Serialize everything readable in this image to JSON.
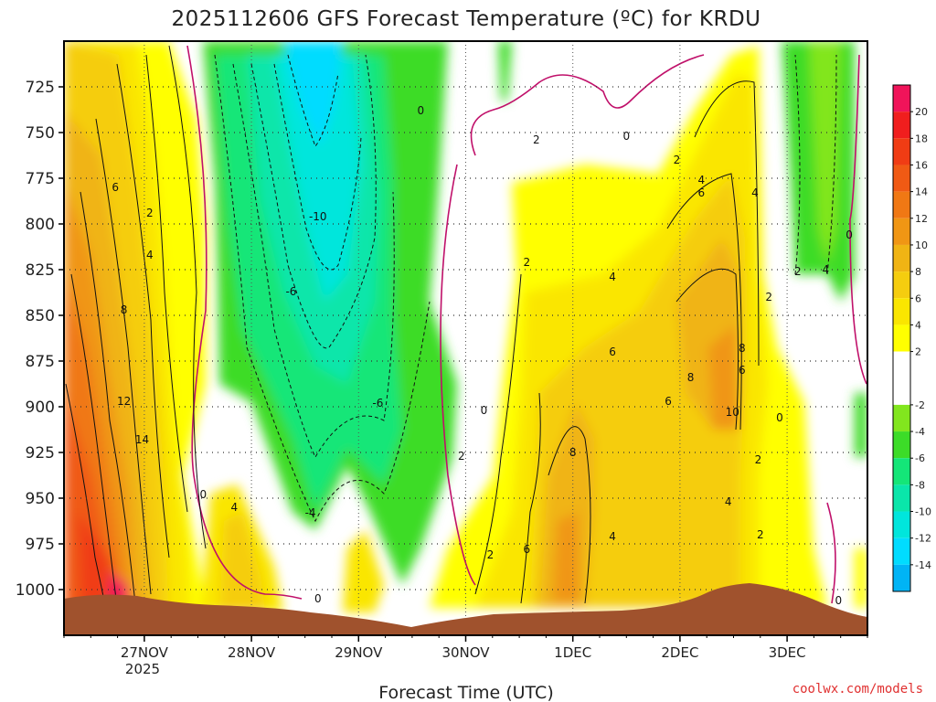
{
  "chart_data": {
    "type": "heatmap",
    "title": "2025112606 GFS Forecast Temperature (ºC) for KRDU",
    "xlabel": "Forecast Time (UTC)",
    "ylabel": "",
    "x_ticks": [
      "27NOV",
      "28NOV",
      "29NOV",
      "30NOV",
      "1DEC",
      "2DEC",
      "3DEC"
    ],
    "x_tick_year": "2025",
    "y_ticks": [
      "725",
      "750",
      "775",
      "800",
      "825",
      "850",
      "875",
      "900",
      "925",
      "950",
      "975",
      "1000"
    ],
    "ylim": [
      1025,
      700
    ],
    "grid": true,
    "colorbar": {
      "ticks": [
        "20",
        "18",
        "16",
        "14",
        "12",
        "10",
        "8",
        "6",
        "4",
        "2",
        "-2",
        "-4",
        "-6",
        "-8",
        "-10",
        "-12",
        "-14"
      ],
      "bins": [
        {
          "min": 20,
          "max": 22,
          "color": "#f0145a"
        },
        {
          "min": 18,
          "max": 20,
          "color": "#f01e1e"
        },
        {
          "min": 16,
          "max": 18,
          "color": "#f03c14"
        },
        {
          "min": 14,
          "max": 16,
          "color": "#f05a14"
        },
        {
          "min": 12,
          "max": 14,
          "color": "#f07814"
        },
        {
          "min": 10,
          "max": 12,
          "color": "#f09614"
        },
        {
          "min": 8,
          "max": 10,
          "color": "#f0b414"
        },
        {
          "min": 6,
          "max": 8,
          "color": "#f5cd0f"
        },
        {
          "min": 4,
          "max": 6,
          "color": "#fae600"
        },
        {
          "min": 2,
          "max": 4,
          "color": "#ffff00"
        },
        {
          "min": -2,
          "max": 2,
          "color": "#ffffff"
        },
        {
          "min": -4,
          "max": -2,
          "color": "#82e61e"
        },
        {
          "min": -6,
          "max": -4,
          "color": "#3cdc28"
        },
        {
          "min": -8,
          "max": -6,
          "color": "#14e678"
        },
        {
          "min": -10,
          "max": -8,
          "color": "#0ae6aa"
        },
        {
          "min": -12,
          "max": -10,
          "color": "#00e6dc"
        },
        {
          "min": -14,
          "max": -12,
          "color": "#00dcff"
        },
        {
          "min": -16,
          "max": -14,
          "color": "#00b4f5"
        }
      ]
    },
    "contour_labels": [
      {
        "day": 26.73,
        "p": 780,
        "text": "6"
      },
      {
        "day": 27.05,
        "p": 794,
        "text": "2"
      },
      {
        "day": 27.05,
        "p": 817,
        "text": "4"
      },
      {
        "day": 26.81,
        "p": 847,
        "text": "8"
      },
      {
        "day": 26.81,
        "p": 897,
        "text": "12"
      },
      {
        "day": 26.98,
        "p": 918,
        "text": "14"
      },
      {
        "day": 27.55,
        "p": 948,
        "text": "0"
      },
      {
        "day": 27.84,
        "p": 955,
        "text": "4"
      },
      {
        "day": 28.62,
        "p": 1005,
        "text": "0"
      },
      {
        "day": 28.55,
        "p": 958,
        "text": "-4"
      },
      {
        "day": 28.37,
        "p": 837,
        "text": "-6"
      },
      {
        "day": 28.62,
        "p": 796,
        "text": "-10"
      },
      {
        "day": 29.18,
        "p": 898,
        "text": "-6"
      },
      {
        "day": 29.58,
        "p": 738,
        "text": "0"
      },
      {
        "day": 29.96,
        "p": 927,
        "text": "2"
      },
      {
        "day": 30.17,
        "p": 902,
        "text": "0"
      },
      {
        "day": 30.23,
        "p": 981,
        "text": "2"
      },
      {
        "day": 30.57,
        "p": 978,
        "text": "6"
      },
      {
        "day": 30.57,
        "p": 821,
        "text": "2"
      },
      {
        "day": 30.66,
        "p": 754,
        "text": "2"
      },
      {
        "day": 31.0,
        "p": 925,
        "text": "8"
      },
      {
        "day": 31.37,
        "p": 971,
        "text": "4"
      },
      {
        "day": 31.37,
        "p": 870,
        "text": "6"
      },
      {
        "day": 31.37,
        "p": 829,
        "text": "4"
      },
      {
        "day": 31.5,
        "p": 752,
        "text": "0"
      },
      {
        "day": 31.89,
        "p": 897,
        "text": "6"
      },
      {
        "day": 31.97,
        "p": 765,
        "text": "2"
      },
      {
        "day": 32.1,
        "p": 884,
        "text": "8"
      },
      {
        "day": 32.2,
        "p": 776,
        "text": "4"
      },
      {
        "day": 32.2,
        "p": 783,
        "text": "6"
      },
      {
        "day": 32.45,
        "p": 952,
        "text": "4"
      },
      {
        "day": 32.49,
        "p": 903,
        "text": "10"
      },
      {
        "day": 32.58,
        "p": 880,
        "text": "6"
      },
      {
        "day": 32.58,
        "p": 868,
        "text": "8"
      },
      {
        "day": 32.7,
        "p": 783,
        "text": "4"
      },
      {
        "day": 32.73,
        "p": 929,
        "text": "2"
      },
      {
        "day": 32.75,
        "p": 970,
        "text": "2"
      },
      {
        "day": 32.83,
        "p": 840,
        "text": "2"
      },
      {
        "day": 32.93,
        "p": 906,
        "text": "0"
      },
      {
        "day": 33.1,
        "p": 826,
        "text": "2"
      },
      {
        "day": 33.36,
        "p": 825,
        "text": "4"
      },
      {
        "day": 33.58,
        "p": 806,
        "text": "0"
      },
      {
        "day": 33.48,
        "p": 1006,
        "text": "0"
      }
    ]
  },
  "credit": "coolwx.com/models"
}
